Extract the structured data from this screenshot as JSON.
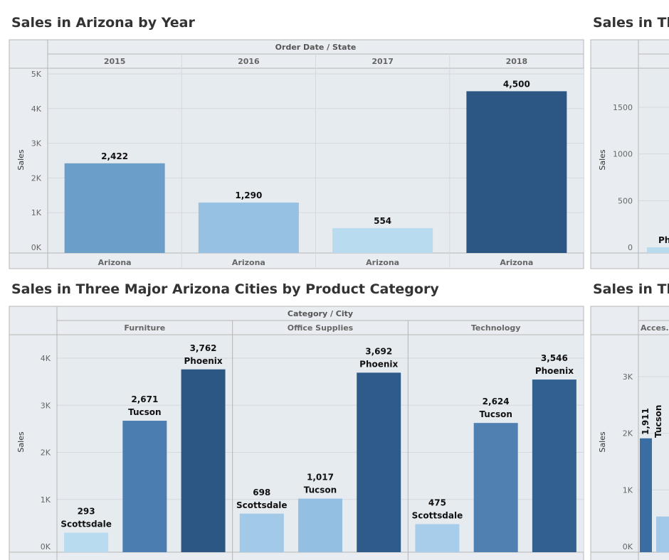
{
  "titles": {
    "top_left": "Sales in Arizona by Year",
    "top_right": "Sales in Thr",
    "bottom_left": "Sales in Three Major Arizona Cities by Product Category",
    "bottom_right": "Sales in Thr"
  },
  "chart_data": [
    {
      "type": "bar",
      "title": "Sales in Arizona by Year",
      "header": "Order Date / State",
      "ylabel": "Sales",
      "columns": [
        "2015",
        "2016",
        "2017",
        "2018"
      ],
      "categories": [
        "Arizona",
        "Arizona",
        "Arizona",
        "Arizona"
      ],
      "values": [
        2422,
        1290,
        554,
        4500
      ],
      "value_labels": [
        "2,422",
        "1,290",
        "554",
        "4,500"
      ],
      "ylim": [
        0,
        5000
      ],
      "yticks": [
        0,
        1000,
        2000,
        3000,
        4000,
        5000
      ],
      "ytick_labels": [
        "0K",
        "1K",
        "2K",
        "3K",
        "4K",
        "5K"
      ],
      "colors": [
        "#6b9ec8",
        "#97c1e2",
        "#b8dbf0",
        "#2c5784"
      ]
    },
    {
      "type": "bar",
      "title": "Sales in Three Major Arizona Cities by Product Category",
      "header": "Category / City",
      "ylabel": "Sales",
      "groups": [
        "Furniture",
        "Office Supplies",
        "Technology"
      ],
      "categories": [
        "Scottsdale",
        "Tucson",
        "Phoenix"
      ],
      "series": [
        {
          "values": [
            293,
            2671,
            3762
          ],
          "value_labels": [
            "293",
            "2,671",
            "3,762"
          ]
        },
        {
          "values": [
            698,
            1017,
            3692
          ],
          "value_labels": [
            "698",
            "1,017",
            "3,692"
          ]
        },
        {
          "values": [
            475,
            2624,
            3546
          ],
          "value_labels": [
            "475",
            "2,624",
            "3,546"
          ]
        }
      ],
      "ylim": [
        0,
        4300
      ],
      "yticks": [
        0,
        1000,
        2000,
        3000,
        4000
      ],
      "ytick_labels": [
        "0K",
        "1K",
        "2K",
        "3K",
        "4K"
      ],
      "colors": [
        [
          "#b8dbf0",
          "#4b7db0",
          "#2c5784"
        ],
        [
          "#a3c9e8",
          "#93bfe2",
          "#2e5b89"
        ],
        [
          "#a8cdea",
          "#5080b1",
          "#32608f"
        ]
      ]
    },
    {
      "type": "bar",
      "title": "Sales in Thr",
      "ylabel": "Sales",
      "partial": true,
      "yticks": [
        0,
        500,
        1000,
        1500
      ],
      "ytick_labels": [
        "0",
        "500",
        "1000",
        "1500"
      ],
      "visible_label": "Pho"
    },
    {
      "type": "bar",
      "title": "Sales in Thr",
      "ylabel": "Sales",
      "partial": true,
      "group_label": "Acces..",
      "yticks": [
        0,
        1000,
        2000,
        3000
      ],
      "ytick_labels": [
        "0K",
        "1K",
        "2K",
        "3K"
      ],
      "visible_values": [
        "1,911"
      ],
      "visible_categories": [
        "Tucson"
      ]
    }
  ]
}
